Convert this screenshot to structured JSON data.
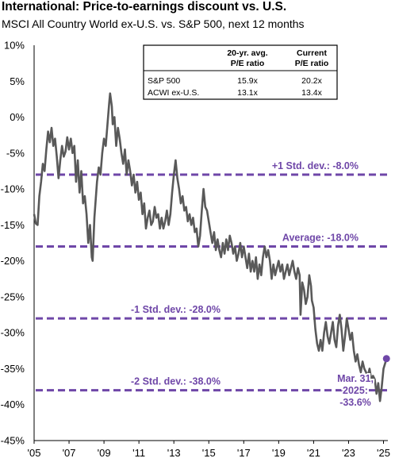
{
  "chart_data": {
    "type": "line",
    "title": "International: Price-to-earnings discount vs. U.S.",
    "subtitle": "MSCI All Country World ex-U.S. vs. S&P 500, next 12 months",
    "ylim": [
      -45,
      10
    ],
    "y_ticks": [
      {
        "value": 10,
        "label": "10%"
      },
      {
        "value": 5,
        "label": "5%"
      },
      {
        "value": 0,
        "label": "0%"
      },
      {
        "value": -5,
        "label": "-5%"
      },
      {
        "value": -10,
        "label": "-10%"
      },
      {
        "value": -15,
        "label": "-15%"
      },
      {
        "value": -20,
        "label": "-20%"
      },
      {
        "value": -25,
        "label": "-25%"
      },
      {
        "value": -30,
        "label": "-30%"
      },
      {
        "value": -35,
        "label": "-35%"
      },
      {
        "value": -40,
        "label": "-40%"
      },
      {
        "value": -45,
        "label": "-45%"
      }
    ],
    "xlim": [
      2005.0,
      2025.25
    ],
    "x_ticks": [
      {
        "value": 2005,
        "label": "'05"
      },
      {
        "value": 2007,
        "label": "'07"
      },
      {
        "value": 2009,
        "label": "'09"
      },
      {
        "value": 2011,
        "label": "'11"
      },
      {
        "value": 2013,
        "label": "'13"
      },
      {
        "value": 2015,
        "label": "'15"
      },
      {
        "value": 2017,
        "label": "'17"
      },
      {
        "value": 2019,
        "label": "'19"
      },
      {
        "value": 2021,
        "label": "'21"
      },
      {
        "value": 2023,
        "label": "'23"
      },
      {
        "value": 2025,
        "label": "'25"
      }
    ],
    "series": [
      {
        "color": "#595959",
        "points": [
          [
            2005.0,
            -13.5
          ],
          [
            2005.1,
            -14.8
          ],
          [
            2005.2,
            -15.0
          ],
          [
            2005.3,
            -11.0
          ],
          [
            2005.4,
            -9.0
          ],
          [
            2005.5,
            -6.5
          ],
          [
            2005.6,
            -7.5
          ],
          [
            2005.7,
            -4.5
          ],
          [
            2005.8,
            -2.0
          ],
          [
            2005.9,
            -3.5
          ],
          [
            2006.0,
            -1.5
          ],
          [
            2006.1,
            -4.0
          ],
          [
            2006.2,
            -3.0
          ],
          [
            2006.3,
            -5.5
          ],
          [
            2006.4,
            -8.5
          ],
          [
            2006.5,
            -6.0
          ],
          [
            2006.6,
            -4.0
          ],
          [
            2006.7,
            -5.5
          ],
          [
            2006.8,
            -4.8
          ],
          [
            2006.9,
            -2.8
          ],
          [
            2007.0,
            -4.5
          ],
          [
            2007.1,
            -3.0
          ],
          [
            2007.2,
            -5.0
          ],
          [
            2007.3,
            -4.0
          ],
          [
            2007.4,
            -9.0
          ],
          [
            2007.5,
            -6.0
          ],
          [
            2007.6,
            -10.5
          ],
          [
            2007.7,
            -7.5
          ],
          [
            2007.8,
            -12.0
          ],
          [
            2007.9,
            -11.0
          ],
          [
            2008.0,
            -13.5
          ],
          [
            2008.1,
            -17.5
          ],
          [
            2008.2,
            -15.0
          ],
          [
            2008.3,
            -19.5
          ],
          [
            2008.35,
            -20.0
          ],
          [
            2008.45,
            -14.0
          ],
          [
            2008.6,
            -9.0
          ],
          [
            2008.7,
            -7.0
          ],
          [
            2008.8,
            -8.0
          ],
          [
            2008.9,
            -5.0
          ],
          [
            2009.0,
            -3.0
          ],
          [
            2009.1,
            -4.0
          ],
          [
            2009.2,
            -1.0
          ],
          [
            2009.3,
            2.0
          ],
          [
            2009.35,
            3.3
          ],
          [
            2009.45,
            1.5
          ],
          [
            2009.5,
            -1.0
          ],
          [
            2009.6,
            0.0
          ],
          [
            2009.7,
            -4.0
          ],
          [
            2009.8,
            -1.5
          ],
          [
            2009.9,
            -3.0
          ],
          [
            2010.0,
            -5.0
          ],
          [
            2010.1,
            -6.5
          ],
          [
            2010.2,
            -4.5
          ],
          [
            2010.3,
            -8.0
          ],
          [
            2010.4,
            -6.0
          ],
          [
            2010.5,
            -7.5
          ],
          [
            2010.6,
            -9.5
          ],
          [
            2010.7,
            -8.0
          ],
          [
            2010.8,
            -10.5
          ],
          [
            2010.9,
            -9.0
          ],
          [
            2011.0,
            -11.5
          ],
          [
            2011.1,
            -10.5
          ],
          [
            2011.2,
            -13.5
          ],
          [
            2011.3,
            -12.0
          ],
          [
            2011.4,
            -15.5
          ],
          [
            2011.5,
            -14.0
          ],
          [
            2011.6,
            -13.0
          ],
          [
            2011.7,
            -15.0
          ],
          [
            2011.8,
            -14.5
          ],
          [
            2011.9,
            -12.5
          ],
          [
            2012.0,
            -14.0
          ],
          [
            2012.1,
            -13.5
          ],
          [
            2012.2,
            -15.5
          ],
          [
            2012.3,
            -14.0
          ],
          [
            2012.4,
            -15.5
          ],
          [
            2012.5,
            -14.5
          ],
          [
            2012.6,
            -13.0
          ],
          [
            2012.7,
            -15.0
          ],
          [
            2012.8,
            -13.5
          ],
          [
            2012.9,
            -10.5
          ],
          [
            2013.0,
            -8.0
          ],
          [
            2013.1,
            -6.0
          ],
          [
            2013.2,
            -8.5
          ],
          [
            2013.3,
            -10.0
          ],
          [
            2013.4,
            -12.0
          ],
          [
            2013.5,
            -11.0
          ],
          [
            2013.6,
            -13.0
          ],
          [
            2013.7,
            -12.5
          ],
          [
            2013.8,
            -14.5
          ],
          [
            2013.9,
            -13.5
          ],
          [
            2014.0,
            -15.0
          ],
          [
            2014.1,
            -14.0
          ],
          [
            2014.2,
            -16.0
          ],
          [
            2014.3,
            -15.5
          ],
          [
            2014.4,
            -18.0
          ],
          [
            2014.5,
            -16.5
          ],
          [
            2014.6,
            -13.0
          ],
          [
            2014.7,
            -10.0
          ],
          [
            2014.8,
            -12.5
          ],
          [
            2014.9,
            -13.0
          ],
          [
            2015.0,
            -14.5
          ],
          [
            2015.1,
            -16.0
          ],
          [
            2015.2,
            -17.5
          ],
          [
            2015.3,
            -16.0
          ],
          [
            2015.4,
            -18.5
          ],
          [
            2015.5,
            -17.0
          ],
          [
            2015.6,
            -18.5
          ],
          [
            2015.7,
            -19.5
          ],
          [
            2015.8,
            -17.5
          ],
          [
            2015.9,
            -19.0
          ],
          [
            2016.0,
            -17.0
          ],
          [
            2016.1,
            -18.5
          ],
          [
            2016.2,
            -16.5
          ],
          [
            2016.3,
            -17.5
          ],
          [
            2016.4,
            -19.0
          ],
          [
            2016.5,
            -18.0
          ],
          [
            2016.6,
            -20.0
          ],
          [
            2016.7,
            -19.0
          ],
          [
            2016.8,
            -17.5
          ],
          [
            2016.9,
            -19.5
          ],
          [
            2017.0,
            -18.0
          ],
          [
            2017.1,
            -19.5
          ],
          [
            2017.2,
            -21.0
          ],
          [
            2017.3,
            -19.0
          ],
          [
            2017.4,
            -21.5
          ],
          [
            2017.5,
            -20.0
          ],
          [
            2017.6,
            -21.5
          ],
          [
            2017.7,
            -19.5
          ],
          [
            2017.8,
            -22.5
          ],
          [
            2017.9,
            -20.5
          ],
          [
            2018.0,
            -22.0
          ],
          [
            2018.1,
            -19.5
          ],
          [
            2018.2,
            -18.0
          ],
          [
            2018.3,
            -19.5
          ],
          [
            2018.4,
            -18.5
          ],
          [
            2018.5,
            -20.0
          ],
          [
            2018.6,
            -22.5
          ],
          [
            2018.7,
            -20.5
          ],
          [
            2018.8,
            -22.0
          ],
          [
            2018.9,
            -21.0
          ],
          [
            2019.0,
            -20.0
          ],
          [
            2019.1,
            -21.5
          ],
          [
            2019.2,
            -20.5
          ],
          [
            2019.3,
            -22.5
          ],
          [
            2019.4,
            -21.5
          ],
          [
            2019.5,
            -20.5
          ],
          [
            2019.6,
            -22.0
          ],
          [
            2019.7,
            -21.0
          ],
          [
            2019.8,
            -20.0
          ],
          [
            2019.9,
            -21.5
          ],
          [
            2020.0,
            -22.5
          ],
          [
            2020.1,
            -21.0
          ],
          [
            2020.2,
            -22.0
          ],
          [
            2020.25,
            -27.5
          ],
          [
            2020.35,
            -23.0
          ],
          [
            2020.45,
            -24.0
          ],
          [
            2020.55,
            -26.0
          ],
          [
            2020.65,
            -25.0
          ],
          [
            2020.75,
            -22.0
          ],
          [
            2020.85,
            -23.5
          ],
          [
            2020.9,
            -25.5
          ],
          [
            2021.0,
            -26.5
          ],
          [
            2021.1,
            -29.5
          ],
          [
            2021.2,
            -31.5
          ],
          [
            2021.3,
            -32.5
          ],
          [
            2021.4,
            -31.0
          ],
          [
            2021.5,
            -32.5
          ],
          [
            2021.6,
            -30.0
          ],
          [
            2021.7,
            -28.5
          ],
          [
            2021.8,
            -30.5
          ],
          [
            2021.9,
            -31.5
          ],
          [
            2022.0,
            -30.0
          ],
          [
            2022.1,
            -28.5
          ],
          [
            2022.2,
            -31.0
          ],
          [
            2022.3,
            -32.0
          ],
          [
            2022.4,
            -29.0
          ],
          [
            2022.5,
            -27.5
          ],
          [
            2022.6,
            -29.5
          ],
          [
            2022.7,
            -32.5
          ],
          [
            2022.8,
            -30.5
          ],
          [
            2022.9,
            -28.0
          ],
          [
            2023.0,
            -29.5
          ],
          [
            2023.1,
            -31.0
          ],
          [
            2023.2,
            -30.0
          ],
          [
            2023.3,
            -32.5
          ],
          [
            2023.4,
            -34.0
          ],
          [
            2023.5,
            -33.0
          ],
          [
            2023.6,
            -34.5
          ],
          [
            2023.7,
            -35.5
          ],
          [
            2023.8,
            -34.0
          ],
          [
            2023.9,
            -35.0
          ],
          [
            2024.0,
            -35.5
          ],
          [
            2024.1,
            -36.0
          ],
          [
            2024.2,
            -35.0
          ],
          [
            2024.3,
            -36.5
          ],
          [
            2024.4,
            -36.0
          ],
          [
            2024.5,
            -36.5
          ],
          [
            2024.6,
            -38.5
          ],
          [
            2024.7,
            -37.0
          ],
          [
            2024.8,
            -39.5
          ],
          [
            2024.9,
            -37.5
          ],
          [
            2025.0,
            -35.0
          ],
          [
            2025.1,
            -34.2
          ],
          [
            2025.17,
            -33.6
          ]
        ]
      }
    ],
    "reference_lines": [
      {
        "value": -8.0,
        "label": "+1 Std. dev.: -8.0%",
        "label_side": "right"
      },
      {
        "value": -18.0,
        "label": "Average: -18.0%",
        "label_side": "right"
      },
      {
        "value": -28.0,
        "label": "-1 Std. dev.: -28.0%",
        "label_side": "left"
      },
      {
        "value": -38.0,
        "label": "-2 Std. dev.: -38.0%",
        "label_side": "left"
      }
    ],
    "reference_color": "#6f47a8",
    "end_point": {
      "x": 2025.17,
      "y": -33.6,
      "label_lines": [
        "Mar. 31,",
        "2025:",
        "-33.6%"
      ]
    },
    "table": {
      "headers": [
        [
          "",
          ""
        ],
        [
          "20-yr. avg.",
          "P/E ratio"
        ],
        [
          "Current",
          "P/E ratio"
        ]
      ],
      "rows": [
        [
          "S&P 500",
          "15.9x",
          "20.2x"
        ],
        [
          "ACWI ex-U.S.",
          "13.1x",
          "13.4x"
        ]
      ]
    },
    "grid": false,
    "legend": "none"
  }
}
